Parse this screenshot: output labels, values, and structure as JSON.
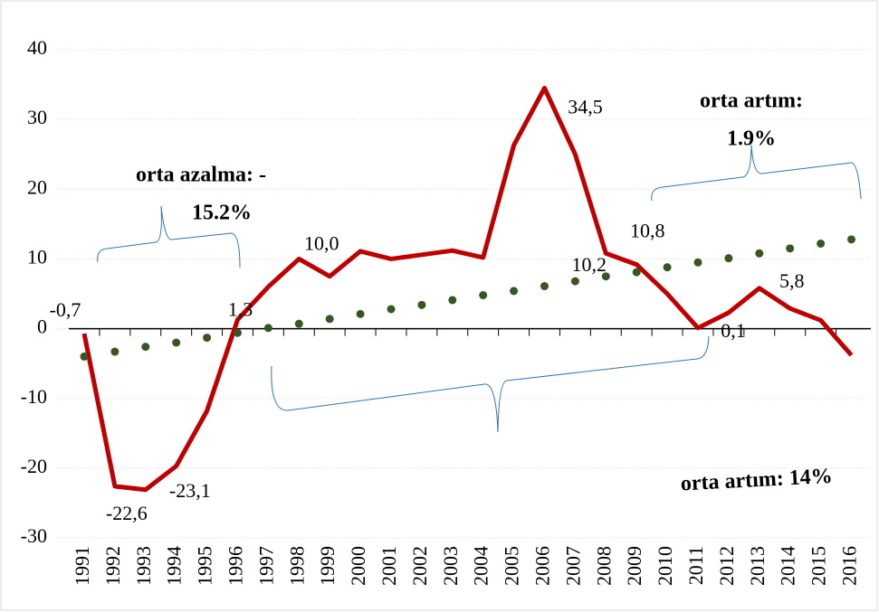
{
  "chart_data": {
    "type": "line",
    "categories": [
      "1991",
      "1992",
      "1993",
      "1994",
      "1995",
      "1996",
      "1997",
      "1998",
      "1999",
      "2000",
      "2001",
      "2002",
      "2003",
      "2004",
      "2005",
      "2006",
      "2007",
      "2008",
      "2009",
      "2010",
      "2011",
      "2012",
      "2013",
      "2014",
      "2015",
      "2016"
    ],
    "series": [
      {
        "color": "#c00000",
        "values": [
          -0.7,
          -22.6,
          -23.1,
          -19.7,
          -11.8,
          1.3,
          6.0,
          10.0,
          7.5,
          11.1,
          10.0,
          10.6,
          11.2,
          10.2,
          26.3,
          34.5,
          25.0,
          10.8,
          9.2,
          5.0,
          0.1,
          2.3,
          5.8,
          2.9,
          1.2,
          -3.8
        ],
        "value_labels": [
          "-0,7",
          "-22,6",
          "-23,1",
          null,
          null,
          "1,3",
          null,
          "10,0",
          null,
          null,
          null,
          null,
          null,
          "10,2",
          null,
          "34,5",
          null,
          "10,8",
          null,
          null,
          "0,1",
          null,
          "5,8",
          null,
          null,
          null
        ]
      },
      {
        "color": "#375623",
        "style": "dotted",
        "values": [
          -4.0,
          -3.3,
          -2.6,
          -2.0,
          -1.3,
          -0.6,
          0.1,
          0.7,
          1.4,
          2.1,
          2.8,
          3.4,
          4.1,
          4.8,
          5.4,
          6.1,
          6.8,
          7.5,
          8.1,
          8.8,
          9.5,
          10.1,
          10.8,
          11.5,
          12.2,
          12.8
        ]
      }
    ],
    "ylim": [
      -30,
      40
    ],
    "yticks": [
      -30,
      -20,
      -10,
      0,
      10,
      20,
      30,
      40
    ],
    "grid": true,
    "annotations": [
      {
        "lines": [
          "orta azalma: -",
          "15.2%"
        ]
      },
      {
        "lines": [
          "orta artım:",
          "1.9%"
        ]
      },
      {
        "lines": [
          "orta artım: 14%"
        ]
      }
    ]
  }
}
